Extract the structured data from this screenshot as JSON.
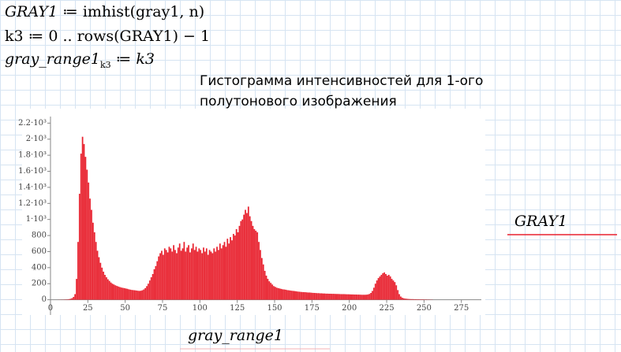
{
  "worksheet": {
    "equations": [
      {
        "lhs": "GRAY1",
        "op": "≔",
        "rhs": "imhist(gray1, n)"
      },
      {
        "lhs": "k3",
        "op": "≔",
        "rhs": "0 .. rows(GRAY1) − 1"
      },
      {
        "lhs": "gray_range1",
        "subscript": "k3",
        "op": "≔",
        "rhs": "k3"
      }
    ]
  },
  "chart_data": {
    "type": "bar",
    "title": "Гистограмма интенсивностей для 1-ого полутонового изображения",
    "x_label": "gray_range1",
    "xlim": [
      -19,
      291
    ],
    "ylim": [
      -190,
      2380
    ],
    "xticks": [
      0,
      25,
      50,
      75,
      100,
      125,
      150,
      175,
      200,
      225,
      250,
      275
    ],
    "yticks": [
      0,
      200,
      400,
      600,
      800,
      {
        "value": 1000,
        "label": "1·10³"
      },
      {
        "value": 1200,
        "label": "1.2·10³"
      },
      {
        "value": 1400,
        "label": "1.4·10³"
      },
      {
        "value": 1600,
        "label": "1.6·10³"
      },
      {
        "value": 1800,
        "label": "1.8·10³"
      },
      {
        "value": 2000,
        "label": "2·10³"
      },
      {
        "value": 2200,
        "label": "2.2·10³"
      }
    ],
    "x": [
      0,
      1,
      2,
      3,
      4,
      5,
      6,
      7,
      8,
      9,
      10,
      11,
      12,
      13,
      14,
      15,
      16,
      17,
      18,
      19,
      20,
      21,
      22,
      23,
      24,
      25,
      26,
      27,
      28,
      29,
      30,
      31,
      32,
      33,
      34,
      35,
      36,
      37,
      38,
      39,
      40,
      41,
      42,
      43,
      44,
      45,
      46,
      47,
      48,
      49,
      50,
      51,
      52,
      53,
      54,
      55,
      56,
      57,
      58,
      59,
      60,
      61,
      62,
      63,
      64,
      65,
      66,
      67,
      68,
      69,
      70,
      71,
      72,
      73,
      74,
      75,
      76,
      77,
      78,
      79,
      80,
      81,
      82,
      83,
      84,
      85,
      86,
      87,
      88,
      89,
      90,
      91,
      92,
      93,
      94,
      95,
      96,
      97,
      98,
      99,
      100,
      101,
      102,
      103,
      104,
      105,
      106,
      107,
      108,
      109,
      110,
      111,
      112,
      113,
      114,
      115,
      116,
      117,
      118,
      119,
      120,
      121,
      122,
      123,
      124,
      125,
      126,
      127,
      128,
      129,
      130,
      131,
      132,
      133,
      134,
      135,
      136,
      137,
      138,
      139,
      140,
      141,
      142,
      143,
      144,
      145,
      146,
      147,
      148,
      149,
      150,
      151,
      152,
      153,
      154,
      155,
      156,
      157,
      158,
      159,
      160,
      161,
      162,
      163,
      164,
      165,
      166,
      167,
      168,
      169,
      170,
      171,
      172,
      173,
      174,
      175,
      176,
      177,
      178,
      179,
      180,
      181,
      182,
      183,
      184,
      185,
      186,
      187,
      188,
      189,
      190,
      191,
      192,
      193,
      194,
      195,
      196,
      197,
      198,
      199,
      200,
      201,
      202,
      203,
      204,
      205,
      206,
      207,
      208,
      209,
      210,
      211,
      212,
      213,
      214,
      215,
      216,
      217,
      218,
      219,
      220,
      221,
      222,
      223,
      224,
      225,
      226,
      227,
      228,
      229,
      230,
      231,
      232,
      233,
      234,
      235,
      236,
      237,
      238,
      239,
      240,
      241,
      242,
      243,
      244,
      245,
      246,
      247,
      248,
      249,
      250,
      251,
      252,
      253,
      254,
      255
    ],
    "series": [
      {
        "name": "GRAY1",
        "color": "#e8212e",
        "values": [
          0,
          0,
          0,
          0,
          0,
          1,
          1,
          2,
          2,
          3,
          4,
          5,
          8,
          12,
          20,
          35,
          70,
          260,
          720,
          1320,
          1820,
          2030,
          1940,
          1780,
          1620,
          1460,
          1260,
          1120,
          960,
          840,
          720,
          610,
          530,
          460,
          400,
          350,
          310,
          280,
          255,
          235,
          215,
          200,
          190,
          180,
          172,
          165,
          158,
          152,
          148,
          145,
          140,
          136,
          130,
          126,
          122,
          120,
          118,
          115,
          112,
          110,
          112,
          118,
          128,
          145,
          170,
          200,
          240,
          280,
          320,
          380,
          420,
          480,
          540,
          580,
          610,
          560,
          640,
          620,
          590,
          660,
          640,
          600,
          680,
          620,
          580,
          650,
          700,
          610,
          640,
          720,
          600,
          650,
          680,
          590,
          640,
          700,
          620,
          660,
          600,
          640,
          620,
          580,
          650,
          600,
          640,
          560,
          620,
          600,
          580,
          640,
          600,
          660,
          620,
          700,
          640,
          680,
          720,
          660,
          760,
          700,
          780,
          740,
          820,
          800,
          880,
          840,
          920,
          980,
          1000,
          1060,
          1120,
          1080,
          1160,
          1040,
          980,
          920,
          880,
          860,
          840,
          720,
          620,
          520,
          440,
          360,
          300,
          260,
          230,
          210,
          190,
          170,
          160,
          150,
          145,
          140,
          135,
          130,
          128,
          125,
          120,
          118,
          115,
          112,
          110,
          108,
          105,
          102,
          100,
          98,
          96,
          95,
          94,
          92,
          90,
          90,
          88,
          86,
          85,
          84,
          82,
          82,
          80,
          80,
          78,
          78,
          76,
          76,
          75,
          75,
          74,
          74,
          73,
          72,
          72,
          71,
          70,
          70,
          70,
          69,
          68,
          68,
          67,
          66,
          66,
          65,
          65,
          64,
          64,
          63,
          62,
          62,
          62,
          63,
          66,
          72,
          85,
          110,
          150,
          200,
          240,
          270,
          290,
          310,
          330,
          340,
          320,
          300,
          310,
          290,
          260,
          240,
          220,
          180,
          120,
          70,
          40,
          25,
          18,
          14,
          12,
          10,
          9,
          8,
          8,
          7,
          7,
          6,
          6,
          5,
          5,
          5,
          4,
          4,
          3,
          3,
          2,
          2
        ]
      }
    ]
  }
}
